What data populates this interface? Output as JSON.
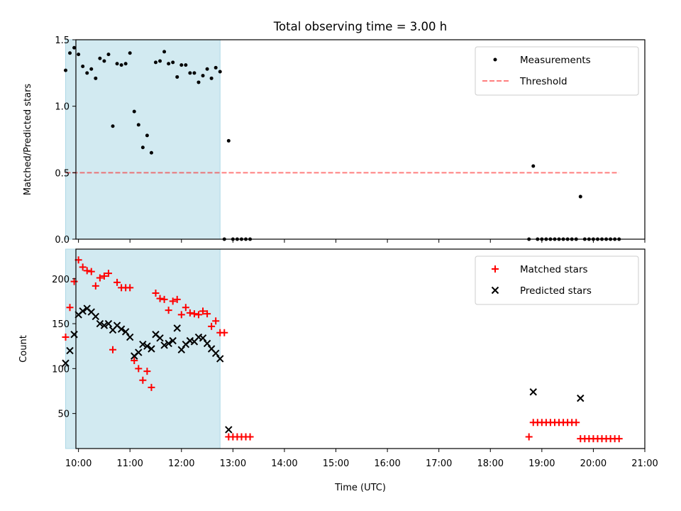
{
  "title": "Total observing time = 3.00 h",
  "xlabel": "Time (UTC)",
  "x_ticks": [
    "10:00",
    "11:00",
    "12:00",
    "13:00",
    "14:00",
    "15:00",
    "16:00",
    "17:00",
    "18:00",
    "19:00",
    "20:00",
    "21:00"
  ],
  "colors": {
    "shade": "#add8e6",
    "measurement": "#000000",
    "threshold": "#ff0000",
    "matched": "#ff0000",
    "predicted": "#000000"
  },
  "chart_data": [
    {
      "type": "scatter",
      "ylabel": "Matched/Predicted stars",
      "ylim": [
        0,
        1.5
      ],
      "xlim": [
        "09:57",
        "21:00"
      ],
      "y_ticks": [
        "0.0",
        "0.5",
        "1.0",
        "1.5"
      ],
      "shaded_interval": [
        "09:45",
        "12:45"
      ],
      "legend_position": "top-right",
      "threshold": {
        "name": "Threshold",
        "value": 0.5,
        "x_range": [
          "09:45",
          "20:30"
        ],
        "style": "dashed"
      },
      "series": [
        {
          "name": "Measurements",
          "marker": "dot",
          "points": [
            [
              "09:45",
              1.27
            ],
            [
              "09:50",
              1.4
            ],
            [
              "09:55",
              1.44
            ],
            [
              "10:00",
              1.39
            ],
            [
              "10:05",
              1.3
            ],
            [
              "10:10",
              1.25
            ],
            [
              "10:15",
              1.28
            ],
            [
              "10:20",
              1.21
            ],
            [
              "10:25",
              1.36
            ],
            [
              "10:30",
              1.34
            ],
            [
              "10:35",
              1.39
            ],
            [
              "10:40",
              0.85
            ],
            [
              "10:45",
              1.32
            ],
            [
              "10:50",
              1.31
            ],
            [
              "10:55",
              1.32
            ],
            [
              "11:00",
              1.4
            ],
            [
              "11:05",
              0.96
            ],
            [
              "11:10",
              0.86
            ],
            [
              "11:15",
              0.69
            ],
            [
              "11:20",
              0.78
            ],
            [
              "11:25",
              0.65
            ],
            [
              "11:30",
              1.33
            ],
            [
              "11:35",
              1.34
            ],
            [
              "11:40",
              1.41
            ],
            [
              "11:45",
              1.32
            ],
            [
              "11:50",
              1.33
            ],
            [
              "11:55",
              1.22
            ],
            [
              "12:00",
              1.31
            ],
            [
              "12:05",
              1.31
            ],
            [
              "12:10",
              1.25
            ],
            [
              "12:15",
              1.25
            ],
            [
              "12:20",
              1.18
            ],
            [
              "12:25",
              1.23
            ],
            [
              "12:30",
              1.28
            ],
            [
              "12:35",
              1.21
            ],
            [
              "12:40",
              1.29
            ],
            [
              "12:45",
              1.26
            ],
            [
              "12:50",
              0.0
            ],
            [
              "12:55",
              0.74
            ],
            [
              "13:00",
              0.0
            ],
            [
              "13:05",
              0.0
            ],
            [
              "13:10",
              0.0
            ],
            [
              "13:15",
              0.0
            ],
            [
              "13:20",
              0.0
            ],
            [
              "18:45",
              0.0
            ],
            [
              "18:50",
              0.55
            ],
            [
              "18:55",
              0.0
            ],
            [
              "19:00",
              0.0
            ],
            [
              "19:05",
              0.0
            ],
            [
              "19:10",
              0.0
            ],
            [
              "19:15",
              0.0
            ],
            [
              "19:20",
              0.0
            ],
            [
              "19:25",
              0.0
            ],
            [
              "19:30",
              0.0
            ],
            [
              "19:35",
              0.0
            ],
            [
              "19:40",
              0.0
            ],
            [
              "19:45",
              0.32
            ],
            [
              "19:50",
              0.0
            ],
            [
              "19:55",
              0.0
            ],
            [
              "20:00",
              0.0
            ],
            [
              "20:05",
              0.0
            ],
            [
              "20:10",
              0.0
            ],
            [
              "20:15",
              0.0
            ],
            [
              "20:20",
              0.0
            ],
            [
              "20:25",
              0.0
            ],
            [
              "20:30",
              0.0
            ]
          ]
        }
      ]
    },
    {
      "type": "scatter",
      "ylabel": "Count",
      "ylim": [
        11,
        233
      ],
      "xlim": [
        "09:57",
        "21:00"
      ],
      "y_ticks": [
        "50",
        "100",
        "150",
        "200"
      ],
      "shaded_interval": [
        "09:45",
        "12:45"
      ],
      "legend_position": "top-right",
      "series": [
        {
          "name": "Matched stars",
          "marker": "plus",
          "points": [
            [
              "09:45",
              135
            ],
            [
              "09:50",
              168
            ],
            [
              "09:55",
              197
            ],
            [
              "10:00",
              221
            ],
            [
              "10:05",
              213
            ],
            [
              "10:10",
              209
            ],
            [
              "10:15",
              208
            ],
            [
              "10:20",
              192
            ],
            [
              "10:25",
              201
            ],
            [
              "10:30",
              203
            ],
            [
              "10:35",
              206
            ],
            [
              "10:40",
              121
            ],
            [
              "10:45",
              196
            ],
            [
              "10:50",
              190
            ],
            [
              "10:55",
              190
            ],
            [
              "11:00",
              190
            ],
            [
              "11:05",
              109
            ],
            [
              "11:10",
              100
            ],
            [
              "11:15",
              87
            ],
            [
              "11:20",
              97
            ],
            [
              "11:25",
              79
            ],
            [
              "11:30",
              184
            ],
            [
              "11:35",
              178
            ],
            [
              "11:40",
              177
            ],
            [
              "11:45",
              165
            ],
            [
              "11:50",
              175
            ],
            [
              "11:55",
              177
            ],
            [
              "12:00",
              160
            ],
            [
              "12:05",
              168
            ],
            [
              "12:10",
              162
            ],
            [
              "12:15",
              161
            ],
            [
              "12:20",
              160
            ],
            [
              "12:25",
              164
            ],
            [
              "12:30",
              161
            ],
            [
              "12:35",
              147
            ],
            [
              "12:40",
              153
            ],
            [
              "12:45",
              140
            ],
            [
              "12:50",
              140
            ],
            [
              "12:55",
              24
            ],
            [
              "13:00",
              24
            ],
            [
              "13:05",
              24
            ],
            [
              "13:10",
              24
            ],
            [
              "13:15",
              24
            ],
            [
              "13:20",
              24
            ],
            [
              "18:45",
              24
            ],
            [
              "18:50",
              40
            ],
            [
              "18:55",
              40
            ],
            [
              "19:00",
              40
            ],
            [
              "19:05",
              40
            ],
            [
              "19:10",
              40
            ],
            [
              "19:15",
              40
            ],
            [
              "19:20",
              40
            ],
            [
              "19:25",
              40
            ],
            [
              "19:30",
              40
            ],
            [
              "19:35",
              40
            ],
            [
              "19:40",
              40
            ],
            [
              "19:45",
              22
            ],
            [
              "19:50",
              22
            ],
            [
              "19:55",
              22
            ],
            [
              "20:00",
              22
            ],
            [
              "20:05",
              22
            ],
            [
              "20:10",
              22
            ],
            [
              "20:15",
              22
            ],
            [
              "20:20",
              22
            ],
            [
              "20:25",
              22
            ],
            [
              "20:30",
              22
            ]
          ]
        },
        {
          "name": "Predicted stars",
          "marker": "x",
          "points": [
            [
              "09:45",
              106
            ],
            [
              "09:50",
              120
            ],
            [
              "09:55",
              138
            ],
            [
              "10:00",
              160
            ],
            [
              "10:05",
              164
            ],
            [
              "10:10",
              167
            ],
            [
              "10:15",
              163
            ],
            [
              "10:20",
              158
            ],
            [
              "10:25",
              150
            ],
            [
              "10:30",
              148
            ],
            [
              "10:35",
              150
            ],
            [
              "10:40",
              143
            ],
            [
              "10:45",
              148
            ],
            [
              "10:50",
              144
            ],
            [
              "10:55",
              141
            ],
            [
              "11:00",
              135
            ],
            [
              "11:05",
              114
            ],
            [
              "11:10",
              118
            ],
            [
              "11:15",
              127
            ],
            [
              "11:20",
              125
            ],
            [
              "11:25",
              122
            ],
            [
              "11:30",
              138
            ],
            [
              "11:35",
              134
            ],
            [
              "11:40",
              126
            ],
            [
              "11:45",
              128
            ],
            [
              "11:50",
              131
            ],
            [
              "11:55",
              145
            ],
            [
              "12:00",
              121
            ],
            [
              "12:05",
              127
            ],
            [
              "12:10",
              131
            ],
            [
              "12:15",
              130
            ],
            [
              "12:20",
              135
            ],
            [
              "12:25",
              134
            ],
            [
              "12:30",
              128
            ],
            [
              "12:35",
              122
            ],
            [
              "12:40",
              117
            ],
            [
              "12:45",
              111
            ],
            [
              "12:55",
              32
            ],
            [
              "18:50",
              74
            ],
            [
              "19:45",
              67
            ]
          ]
        }
      ]
    }
  ],
  "legends": [
    {
      "items": [
        {
          "label": "Measurements",
          "kind": "dot"
        },
        {
          "label": "Threshold",
          "kind": "dashed"
        }
      ]
    },
    {
      "items": [
        {
          "label": "Matched stars",
          "kind": "plus"
        },
        {
          "label": "Predicted stars",
          "kind": "x"
        }
      ]
    }
  ]
}
